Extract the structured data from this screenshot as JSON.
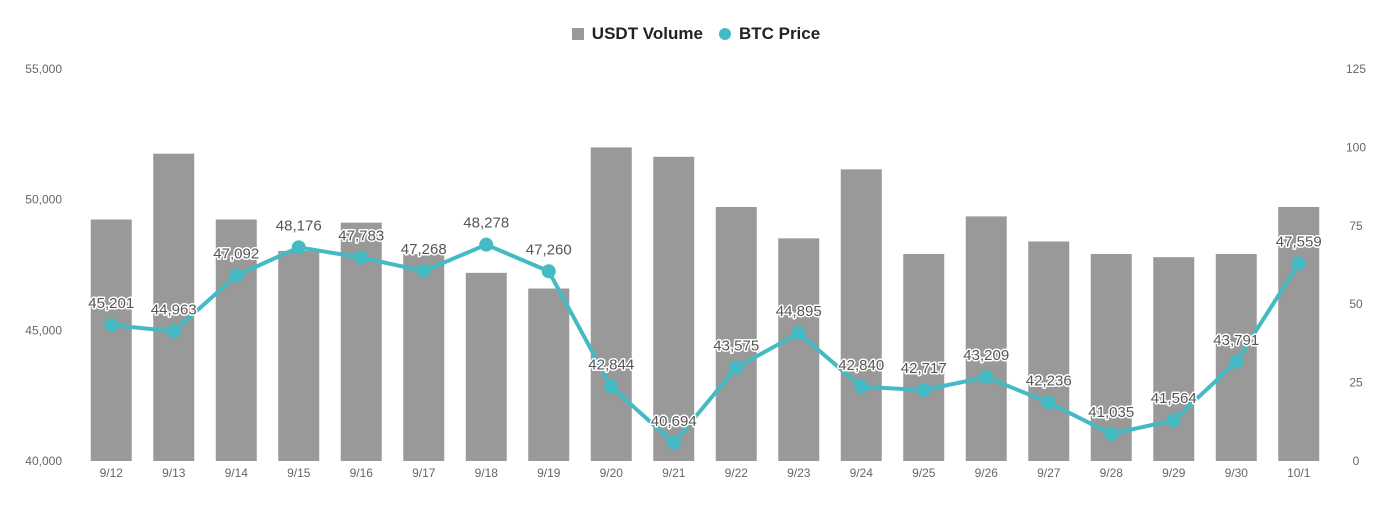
{
  "legend": {
    "volume_label": "USDT Volume",
    "price_label": "BTC Price"
  },
  "colors": {
    "bar": "#999999",
    "line": "#43BAC4"
  },
  "chart_data": {
    "type": "bar+line",
    "categories": [
      "9/12",
      "9/13",
      "9/14",
      "9/15",
      "9/16",
      "9/17",
      "9/18",
      "9/19",
      "9/20",
      "9/21",
      "9/22",
      "9/23",
      "9/24",
      "9/25",
      "9/26",
      "9/27",
      "9/28",
      "9/29",
      "9/30",
      "10/1"
    ],
    "series": [
      {
        "name": "USDT Volume",
        "type": "bar",
        "axis": "right",
        "values": [
          77,
          98,
          77,
          67,
          76,
          66,
          60,
          55,
          100,
          97,
          81,
          71,
          93,
          66,
          78,
          70,
          66,
          65,
          66,
          81
        ]
      },
      {
        "name": "BTC Price",
        "type": "line",
        "axis": "left",
        "values": [
          45201,
          44963,
          47092,
          48176,
          47783,
          47268,
          48278,
          47260,
          42844,
          40694,
          43575,
          44895,
          42840,
          42717,
          43209,
          42236,
          41035,
          41564,
          43791,
          47559
        ],
        "labels": [
          "45,201",
          "44,963",
          "47,092",
          "48,176",
          "47,783",
          "47,268",
          "48,278",
          "47,260",
          "42,844",
          "40,694",
          "43,575",
          "44,895",
          "42,840",
          "42,717",
          "43,209",
          "42,236",
          "41,035",
          "41,564",
          "43,791",
          "47,559"
        ]
      }
    ],
    "left_axis": {
      "ylim": [
        40000,
        55000
      ],
      "ticks": [
        "40,000",
        "45,000",
        "50,000",
        "55,000"
      ],
      "tick_values": [
        40000,
        45000,
        50000,
        55000
      ]
    },
    "right_axis": {
      "ylim": [
        0,
        125
      ],
      "ticks": [
        "0",
        "25",
        "50",
        "75",
        "100",
        "125"
      ],
      "tick_values": [
        0,
        25,
        50,
        75,
        100,
        125
      ]
    },
    "legend_position": "top",
    "grid": false
  }
}
